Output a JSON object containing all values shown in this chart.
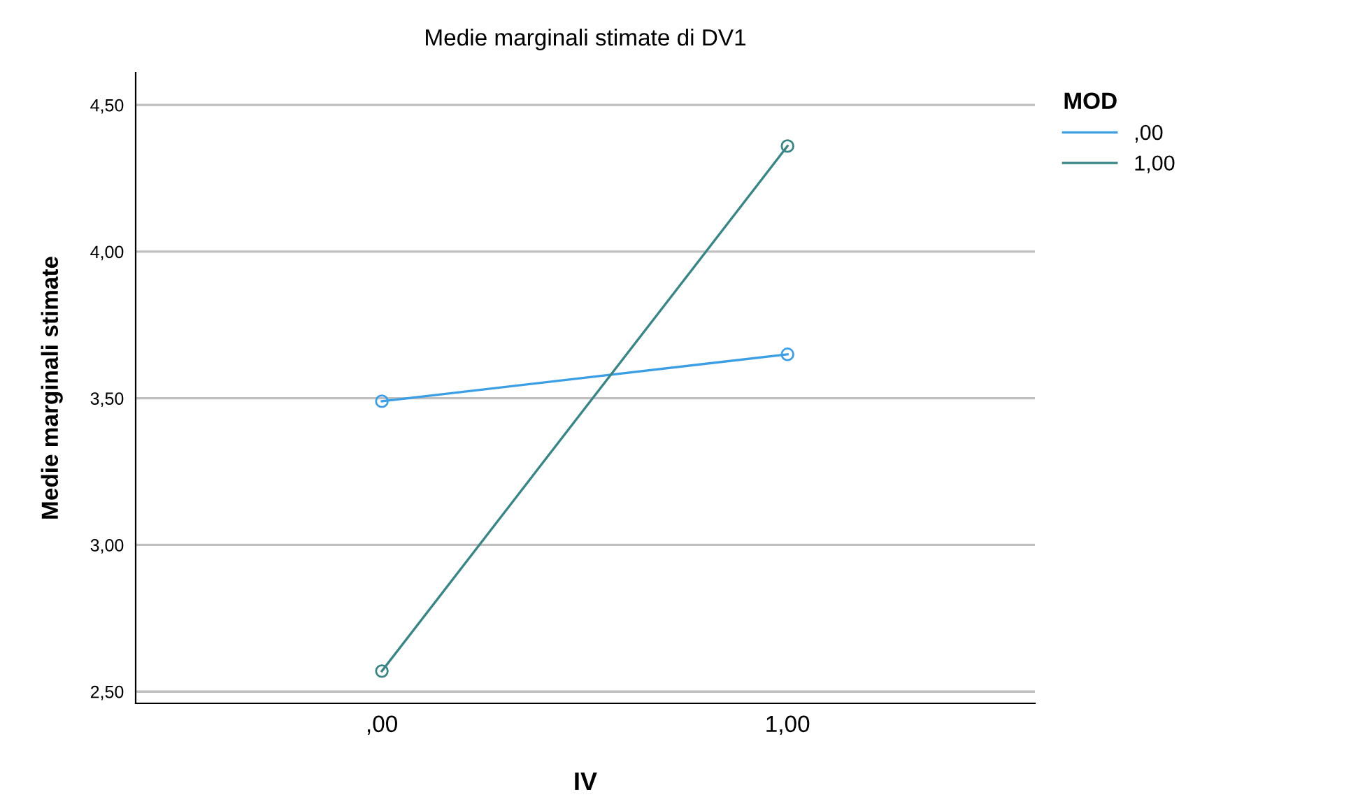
{
  "chart_data": {
    "type": "line",
    "title": "Medie marginali stimate di DV1",
    "xlabel": "IV",
    "ylabel": "Medie marginali stimate",
    "legend_title": "MOD",
    "categories": [
      ",00",
      "1,00"
    ],
    "series": [
      {
        "name": ",00",
        "color": "#3d9fe3",
        "values": [
          3.49,
          3.65
        ]
      },
      {
        "name": "1,00",
        "color": "#3a8585",
        "values": [
          2.57,
          4.36
        ]
      }
    ],
    "ylim": [
      2.46,
      4.61
    ],
    "yticks": [
      {
        "value": 2.5,
        "label": "2,50"
      },
      {
        "value": 3.0,
        "label": "3,00"
      },
      {
        "value": 3.5,
        "label": "3,50"
      },
      {
        "value": 4.0,
        "label": "4,00"
      },
      {
        "value": 4.5,
        "label": "4,50"
      }
    ],
    "grid": "y",
    "legend": "top right",
    "marker": "circle",
    "line_style": "solid"
  }
}
